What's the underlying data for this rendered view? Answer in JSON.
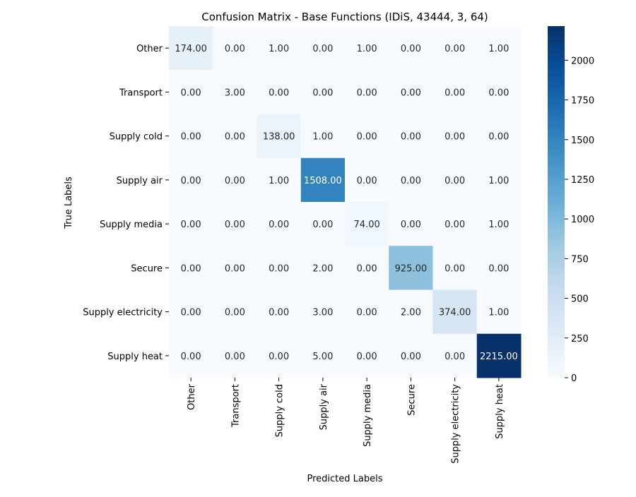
{
  "chart_data": {
    "type": "heatmap",
    "title": "Confusion Matrix - Base Functions (IDiS, 43444, 3, 64)",
    "xlabel": "Predicted Labels",
    "ylabel": "True Labels",
    "x_categories": [
      "Other",
      "Transport",
      "Supply cold",
      "Supply air",
      "Supply media",
      "Secure",
      "Supply electricity",
      "Supply heat"
    ],
    "y_categories": [
      "Other",
      "Transport",
      "Supply cold",
      "Supply air",
      "Supply media",
      "Secure",
      "Supply electricity",
      "Supply heat"
    ],
    "values": [
      [
        174,
        0,
        1,
        0,
        1,
        0,
        0,
        1
      ],
      [
        0,
        3,
        0,
        0,
        0,
        0,
        0,
        0
      ],
      [
        0,
        0,
        138,
        1,
        0,
        0,
        0,
        0
      ],
      [
        0,
        0,
        1,
        1508,
        0,
        0,
        0,
        1
      ],
      [
        0,
        0,
        0,
        0,
        74,
        0,
        0,
        1
      ],
      [
        0,
        0,
        0,
        2,
        0,
        925,
        0,
        0
      ],
      [
        0,
        0,
        0,
        3,
        0,
        2,
        374,
        1
      ],
      [
        0,
        0,
        0,
        5,
        0,
        0,
        0,
        2215
      ]
    ],
    "value_format": "2 decimal places",
    "colorscale": "Blues",
    "color_range": [
      0,
      2215
    ],
    "colorbar_ticks": [
      0,
      250,
      500,
      750,
      1000,
      1250,
      1500,
      1750,
      2000
    ],
    "colorbar_tick_labels": [
      "0",
      "250",
      "500",
      "750",
      "1000",
      "1250",
      "1500",
      "1750",
      "2000"
    ]
  }
}
